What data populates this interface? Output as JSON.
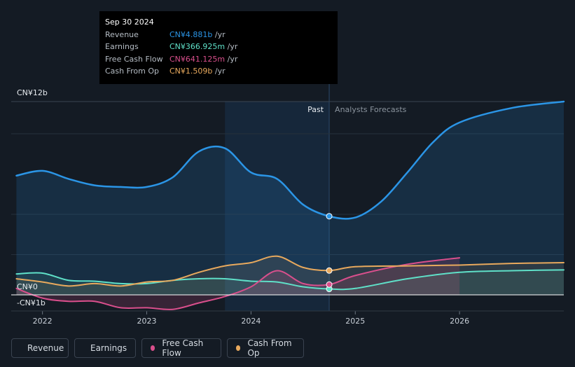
{
  "tooltip": {
    "date": "Sep 30 2024",
    "rows": [
      {
        "label": "Revenue",
        "value": "CN¥4.881b",
        "unit": " /yr",
        "color": "#2b95e6"
      },
      {
        "label": "Earnings",
        "value": "CN¥366.925m",
        "unit": " /yr",
        "color": "#5fe0c8"
      },
      {
        "label": "Free Cash Flow",
        "value": "CN¥641.125m",
        "unit": " /yr",
        "color": "#d94f8c"
      },
      {
        "label": "Cash From Op",
        "value": "CN¥1.509b",
        "unit": " /yr",
        "color": "#e8a95d"
      }
    ]
  },
  "past_label": "Past",
  "forecast_label": "Analysts Forecasts",
  "colors": {
    "background": "#141b24",
    "past_region": "#17293b",
    "gridline": "#2a333e",
    "zero_line": "#ffffff"
  },
  "legend": [
    {
      "label": "Revenue",
      "color": "#2b95e6"
    },
    {
      "label": "Earnings",
      "color": "#5fe0c8"
    },
    {
      "label": "Free Cash Flow",
      "color": "#d94f8c"
    },
    {
      "label": "Cash From Op",
      "color": "#e8a95d"
    }
  ],
  "chart_data": {
    "type": "line",
    "y_tick_labels": [
      "CN¥12b",
      "CN¥0",
      "-CN¥1b"
    ],
    "y_ticks": [
      12,
      0,
      -1
    ],
    "ylim": [
      -1,
      12
    ],
    "xlim": [
      2021.7,
      2027.0
    ],
    "x_tick_labels": [
      "2022",
      "2023",
      "2024",
      "2025",
      "2026"
    ],
    "x_ticks": [
      2022,
      2023,
      2024,
      2025,
      2026
    ],
    "past_end": 2024.75,
    "highlight_start": 2023.75,
    "grid": true,
    "series": [
      {
        "name": "Revenue",
        "color": "#2b95e6",
        "fill": true,
        "points": [
          [
            2021.75,
            7.4
          ],
          [
            2022.0,
            7.7
          ],
          [
            2022.25,
            7.2
          ],
          [
            2022.5,
            6.8
          ],
          [
            2022.75,
            6.7
          ],
          [
            2023.0,
            6.7
          ],
          [
            2023.25,
            7.3
          ],
          [
            2023.5,
            8.9
          ],
          [
            2023.75,
            9.1
          ],
          [
            2024.0,
            7.6
          ],
          [
            2024.25,
            7.2
          ],
          [
            2024.5,
            5.6
          ],
          [
            2024.75,
            4.881
          ],
          [
            2025.0,
            4.8
          ],
          [
            2025.25,
            5.8
          ],
          [
            2025.5,
            7.6
          ],
          [
            2025.75,
            9.5
          ],
          [
            2026.0,
            10.7
          ],
          [
            2026.5,
            11.6
          ],
          [
            2027.0,
            12.0
          ]
        ]
      },
      {
        "name": "Earnings",
        "color": "#5fe0c8",
        "fill": true,
        "points": [
          [
            2021.75,
            1.3
          ],
          [
            2022.0,
            1.35
          ],
          [
            2022.25,
            0.9
          ],
          [
            2022.5,
            0.85
          ],
          [
            2022.75,
            0.7
          ],
          [
            2023.0,
            0.7
          ],
          [
            2023.25,
            0.9
          ],
          [
            2023.5,
            1.0
          ],
          [
            2023.75,
            1.0
          ],
          [
            2024.0,
            0.85
          ],
          [
            2024.25,
            0.8
          ],
          [
            2024.5,
            0.5
          ],
          [
            2024.75,
            0.367
          ],
          [
            2025.0,
            0.4
          ],
          [
            2025.5,
            1.0
          ],
          [
            2026.0,
            1.4
          ],
          [
            2026.5,
            1.5
          ],
          [
            2027.0,
            1.55
          ]
        ]
      },
      {
        "name": "Free Cash Flow",
        "color": "#d94f8c",
        "fill": false,
        "points": [
          [
            2021.75,
            0.4
          ],
          [
            2022.0,
            -0.2
          ],
          [
            2022.25,
            -0.4
          ],
          [
            2022.5,
            -0.4
          ],
          [
            2022.75,
            -0.8
          ],
          [
            2023.0,
            -0.8
          ],
          [
            2023.25,
            -0.9
          ],
          [
            2023.5,
            -0.5
          ],
          [
            2023.75,
            -0.1
          ],
          [
            2024.0,
            0.5
          ],
          [
            2024.25,
            1.5
          ],
          [
            2024.5,
            0.7
          ],
          [
            2024.75,
            0.641
          ],
          [
            2025.0,
            1.2
          ],
          [
            2025.5,
            1.9
          ],
          [
            2026.0,
            2.3
          ]
        ]
      },
      {
        "name": "Cash From Op",
        "color": "#e8a95d",
        "fill": false,
        "points": [
          [
            2021.75,
            1.0
          ],
          [
            2022.0,
            0.8
          ],
          [
            2022.25,
            0.55
          ],
          [
            2022.5,
            0.7
          ],
          [
            2022.75,
            0.55
          ],
          [
            2023.0,
            0.8
          ],
          [
            2023.25,
            0.9
          ],
          [
            2023.5,
            1.4
          ],
          [
            2023.75,
            1.8
          ],
          [
            2024.0,
            2.0
          ],
          [
            2024.25,
            2.4
          ],
          [
            2024.5,
            1.7
          ],
          [
            2024.75,
            1.509
          ],
          [
            2025.0,
            1.75
          ],
          [
            2025.5,
            1.8
          ],
          [
            2026.0,
            1.85
          ],
          [
            2026.5,
            1.95
          ],
          [
            2027.0,
            2.0
          ]
        ]
      }
    ]
  }
}
